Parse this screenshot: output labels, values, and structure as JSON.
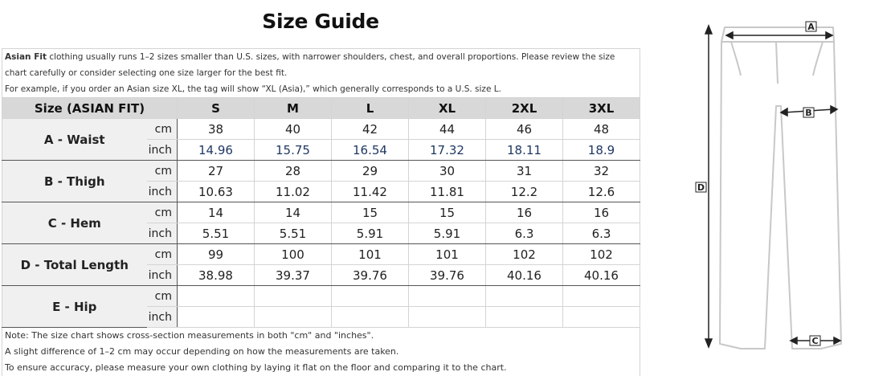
{
  "title": "Size Guide",
  "intro": {
    "bold": "Asian Fit",
    "line1_rest": " clothing usually runs 1–2 sizes smaller than U.S. sizes, with narrower shoulders, chest, and overall proportions. Please review the size",
    "line2": "chart carefully or consider selecting one size larger for the best fit.",
    "line3": "For example, if you order an Asian size XL, the tag will show “XL (Asia),” which generally corresponds to a U.S. size L."
  },
  "table": {
    "header_label": "Size (ASIAN FIT)",
    "sizes": [
      "S",
      "M",
      "L",
      "XL",
      "2XL",
      "3XL"
    ],
    "unit_cm": "cm",
    "unit_inch": "inch",
    "rows": [
      {
        "label": "A - Waist",
        "cm": [
          "38",
          "40",
          "42",
          "44",
          "46",
          "48"
        ],
        "inch": [
          "14.96",
          "15.75",
          "16.54",
          "17.32",
          "18.11",
          "18.9"
        ]
      },
      {
        "label": "B - Thigh",
        "cm": [
          "27",
          "28",
          "29",
          "30",
          "31",
          "32"
        ],
        "inch": [
          "10.63",
          "11.02",
          "11.42",
          "11.81",
          "12.2",
          "12.6"
        ]
      },
      {
        "label": "C - Hem",
        "cm": [
          "14",
          "14",
          "15",
          "15",
          "16",
          "16"
        ],
        "inch": [
          "5.51",
          "5.51",
          "5.91",
          "5.91",
          "6.3",
          "6.3"
        ]
      },
      {
        "label": "D - Total Length",
        "cm": [
          "99",
          "100",
          "101",
          "101",
          "102",
          "102"
        ],
        "inch": [
          "38.98",
          "39.37",
          "39.76",
          "39.76",
          "40.16",
          "40.16"
        ]
      },
      {
        "label": "E - Hip",
        "cm": [
          "",
          "",
          "",
          "",
          "",
          ""
        ],
        "inch": [
          "",
          "",
          "",
          "",
          "",
          ""
        ]
      }
    ]
  },
  "notes": [
    "Note: The size chart shows cross-section measurements in both \"cm\" and \"inches\".",
    "A slight difference of 1–2 cm may occur depending on how the measurements are taken.",
    "To ensure accuracy, please measure your own clothing by laying it flat on the floor and comparing it to the chart."
  ],
  "diagram": {
    "label_a": "A",
    "label_b": "B",
    "label_c": "C",
    "label_d": "D"
  },
  "colors": {
    "header_bg": "#d8d8d8",
    "label_bg": "#f0f0f0",
    "inch_waist_text": "#1f3864",
    "pants_outline": "#c8c8c8",
    "arrow": "#222222"
  }
}
